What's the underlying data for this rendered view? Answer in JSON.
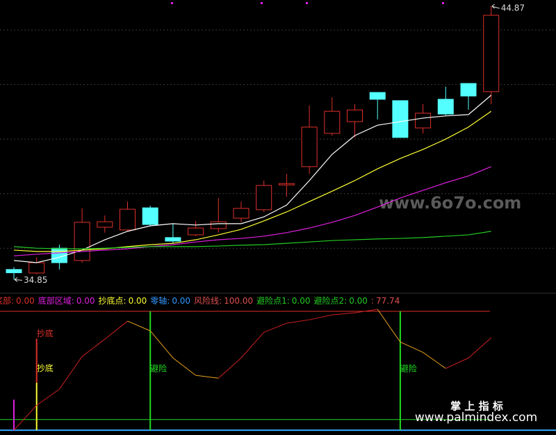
{
  "chart_data": [
    {
      "type": "candlestick",
      "ylim": [
        34.4,
        45.1
      ],
      "yticks": [
        36,
        38,
        40,
        42,
        44
      ],
      "grid": true,
      "up_color": "#e0302a",
      "down_color": "#54ffff",
      "open": [
        35.22,
        35.09,
        36.0,
        35.55,
        36.77,
        36.67,
        37.48,
        36.39,
        36.49,
        36.72,
        37.1,
        37.41,
        38.32,
        38.99,
        40.21,
        40.64,
        41.71,
        41.41,
        40.41,
        41.46,
        42.04,
        41.74
      ],
      "high": [
        35.3,
        35.67,
        36.13,
        37.46,
        37.2,
        37.71,
        37.56,
        36.9,
        37.0,
        37.84,
        37.71,
        38.48,
        38.73,
        41.23,
        41.53,
        41.28,
        41.71,
        41.41,
        41.28,
        41.92,
        42.04,
        44.87
      ],
      "low": [
        34.85,
        35.04,
        35.22,
        35.47,
        36.57,
        36.62,
        36.82,
        36.18,
        36.44,
        36.57,
        36.95,
        37.33,
        37.89,
        38.73,
        40.13,
        40.06,
        40.72,
        40.06,
        40.21,
        40.87,
        41.08,
        41.28
      ],
      "close": [
        35.1,
        35.47,
        35.47,
        36.95,
        36.97,
        37.43,
        36.87,
        36.26,
        36.74,
        36.97,
        37.46,
        38.3,
        38.37,
        40.44,
        41.02,
        41.07,
        41.46,
        40.06,
        40.95,
        40.92,
        41.58,
        44.54
      ],
      "series": [
        {
          "color": "#ffffff",
          "values": [
            35.55,
            35.47,
            35.67,
            35.93,
            36.31,
            36.62,
            36.82,
            36.9,
            36.85,
            36.9,
            36.9,
            37.15,
            37.58,
            38.48,
            39.44,
            40.13,
            40.51,
            40.64,
            40.77,
            40.85,
            40.9,
            41.61
          ]
        },
        {
          "color": "#ffff33",
          "values": [
            35.93,
            35.88,
            35.88,
            35.93,
            35.98,
            36.06,
            36.13,
            36.18,
            36.31,
            36.49,
            36.69,
            37.0,
            37.33,
            37.71,
            38.09,
            38.48,
            38.91,
            39.29,
            39.62,
            40.0,
            40.44,
            41.02
          ]
        },
        {
          "color": "#e020e0",
          "values": [
            35.72,
            35.78,
            35.83,
            35.88,
            35.93,
            35.98,
            36.06,
            36.13,
            36.23,
            36.31,
            36.36,
            36.44,
            36.57,
            36.74,
            36.95,
            37.2,
            37.51,
            37.84,
            38.12,
            38.4,
            38.65,
            38.99
          ]
        },
        {
          "color": "#22cc22",
          "values": [
            36.06,
            36.0,
            35.98,
            35.98,
            36.0,
            36.03,
            36.06,
            36.06,
            36.06,
            36.08,
            36.11,
            36.13,
            36.18,
            36.23,
            36.28,
            36.31,
            36.34,
            36.36,
            36.39,
            36.44,
            36.49,
            36.62
          ]
        }
      ],
      "annotations": [
        44.87,
        34.85
      ],
      "watermark": "www.6o7o.com"
    },
    {
      "type": "indicator",
      "ylim": [
        -4,
        104.7
      ],
      "legend": [
        {
          "name": "底部:",
          "value": 0,
          "label": "0.00",
          "color": "#e0302a"
        },
        {
          "name": "底部区域:",
          "value": 0,
          "label": "0.00",
          "color": "#e020e0"
        },
        {
          "name": "抄底点:",
          "value": 0,
          "label": "0.00",
          "color": "#ffff33"
        },
        {
          "name": "零轴:",
          "value": 0,
          "label": "0.00",
          "color": "#3399ff"
        },
        {
          "name": "风险线:",
          "value": 100,
          "label": "100.00",
          "color": "#e05050"
        },
        {
          "name": "避险点1:",
          "value": 0,
          "label": "0.00",
          "color": "#22cc22"
        },
        {
          "name": "避险点2:",
          "value": 0,
          "label": "0.00",
          "color": "#22cc22"
        },
        {
          "name": ":",
          "value": 77.74,
          "label": "77.74",
          "color": "#e05050"
        }
      ],
      "risk_color": "#e0302a",
      "zero_color": "#33aaff",
      "green_line": {
        "value": 9,
        "color": "#22dd22"
      },
      "line": {
        "values": [
          0,
          21,
          34.5,
          62,
          76.6,
          91.8,
          83.6,
          60.8,
          46.2,
          43.8,
          60.8,
          82.4,
          90,
          92.9,
          97,
          98.8,
          101.7,
          74.2,
          65.5,
          52,
          60.8,
          77.74
        ],
        "up_color": "#d02020",
        "down_color": "#e8a020"
      },
      "sticks": [
        {
          "color": "#e020e0",
          "values": [
            25.7,
            null,
            null,
            null,
            null,
            null,
            null,
            null,
            null,
            null,
            null,
            null,
            null,
            null,
            null,
            null,
            null,
            null,
            null,
            null,
            null,
            null
          ]
        },
        {
          "color": "#ffff33",
          "text": "抄底",
          "values": [
            null,
            40,
            null,
            null,
            null,
            null,
            null,
            null,
            null,
            null,
            null,
            null,
            null,
            null,
            null,
            null,
            null,
            null,
            null,
            null,
            null,
            null
          ]
        },
        {
          "color": "#e0302a",
          "text": "抄底",
          "stack": 1,
          "values": [
            null,
            37,
            null,
            null,
            null,
            null,
            null,
            null,
            null,
            null,
            null,
            null,
            null,
            null,
            null,
            null,
            null,
            null,
            null,
            null,
            null,
            null
          ]
        },
        {
          "color": "#22dd22",
          "text": "避险",
          "values": [
            null,
            null,
            null,
            null,
            null,
            null,
            100,
            null,
            null,
            null,
            null,
            null,
            null,
            null,
            null,
            null,
            null,
            100,
            null,
            null,
            null,
            null
          ]
        }
      ],
      "watermark_title": "掌 上 指 标",
      "watermark_url": "www.palmindex.com"
    }
  ]
}
